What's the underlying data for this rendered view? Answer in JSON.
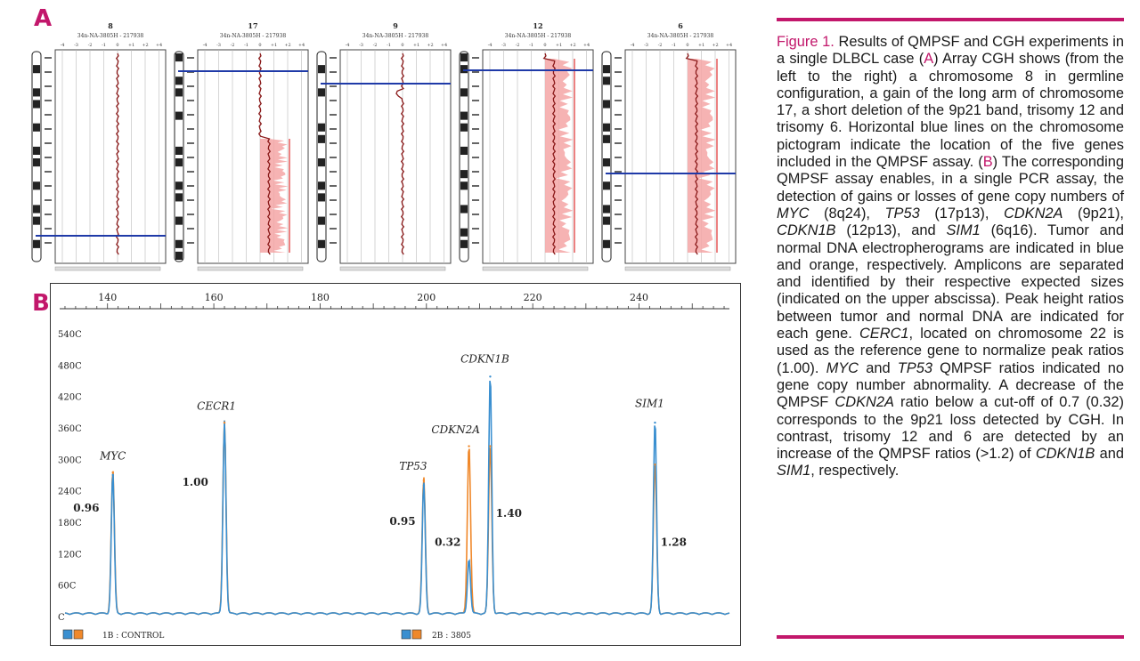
{
  "panel_a": {
    "label": "A",
    "plots": [
      {
        "chrom": "8",
        "sample": "34n-NA-3805H - 217938"
      },
      {
        "chrom": "17",
        "sample": "34n-NA-3805H - 217938"
      },
      {
        "chrom": "9",
        "sample": "34n-NA-3805H - 217938"
      },
      {
        "chrom": "12",
        "sample": "34n-NA-3805H - 217938"
      },
      {
        "chrom": "6",
        "sample": "34n-NA-3805H - 217938"
      }
    ],
    "axis_ticks": [
      "-4",
      "-3",
      "-2",
      "-1",
      "0",
      "+1",
      "+2",
      "+4"
    ]
  },
  "chart_data": {
    "type": "line",
    "title": "",
    "label": "B",
    "xlabel": "",
    "ylabel": "",
    "x_ticks": [
      "140",
      "160",
      "180",
      "200",
      "220",
      "240"
    ],
    "xlim": [
      131,
      257
    ],
    "y_ticks": [
      "540C",
      "480C",
      "420C",
      "360C",
      "300C",
      "240C",
      "180C",
      "120C",
      "60C",
      "C"
    ],
    "ylim": [
      0,
      5400
    ],
    "series": [
      {
        "name": "Tumor DNA",
        "color": "#3a8fd0",
        "peaks": [
          {
            "gene": "MYC",
            "x": 141,
            "height": 2700
          },
          {
            "gene": "CECR1",
            "x": 162,
            "height": 3700
          },
          {
            "gene": "TP53",
            "x": 199.5,
            "height": 2500
          },
          {
            "gene": "CDKN2A",
            "x": 208,
            "height": 1050
          },
          {
            "gene": "CDKN1B",
            "x": 212,
            "height": 4580
          },
          {
            "gene": "SIM1",
            "x": 243,
            "height": 3700
          }
        ]
      },
      {
        "name": "Normal DNA",
        "color": "#f0882a",
        "peaks": [
          {
            "gene": "MYC",
            "x": 141,
            "height": 2750
          },
          {
            "gene": "CECR1",
            "x": 162,
            "height": 3700
          },
          {
            "gene": "TP53",
            "x": 199.5,
            "height": 2600
          },
          {
            "gene": "CDKN2A",
            "x": 208,
            "height": 3250
          },
          {
            "gene": "CDKN1B",
            "x": 212,
            "height": 3250
          },
          {
            "gene": "SIM1",
            "x": 243,
            "height": 2900
          }
        ]
      }
    ],
    "gene_labels": [
      "MYC",
      "CECR1",
      "TP53",
      "CDKN2A",
      "CDKN1B",
      "SIM1"
    ],
    "ratios": [
      {
        "gene": "MYC",
        "value": "0.96"
      },
      {
        "gene": "CECR1",
        "value": "1.00"
      },
      {
        "gene": "TP53",
        "value": "0.95"
      },
      {
        "gene": "CDKN2A",
        "value": "0.32"
      },
      {
        "gene": "CDKN1B",
        "value": "1.40"
      },
      {
        "gene": "SIM1",
        "value": "1.28"
      }
    ],
    "footer_left": "1B : CONTROL",
    "footer_right": "2B : 3805"
  },
  "colors": {
    "accent": "#c2176b",
    "tumor": "#3a8fd0",
    "normal": "#f0882a",
    "cgh_line": "#8b1a1a",
    "cgh_gain": "#f4a6a6",
    "gene_marker": "#1f3aa8"
  },
  "caption": {
    "fig": "Figure 1.",
    "t1": " Results of QMPSF and CGH experiments in a single DLBCL case (",
    "a": "A",
    "t2": ") Array CGH shows (from the left to the right) a chromosome 8 in germline configuration, a gain of the long arm of chromosome 17, a short deletion of the 9p21 band, trisomy 12 and trisomy 6. Horizontal blue lines on the chromosome pictogram indicate the location of the five genes included in the QMPSF assay. (",
    "b": "B",
    "t3": ") The corresponding QMPSF assay enables, in a single PCR assay, the detection of gains or losses of gene copy numbers of ",
    "g1": "MYC",
    "t4": " (8q24), ",
    "g2": "TP53",
    "t5": " (17p13), ",
    "g3": "CDKN2A",
    "t6": " (9p21), ",
    "g4": "CDKN1B",
    "t7": " (12p13), and ",
    "g5": "SIM1",
    "t8": " (6q16). Tumor and normal DNA electropherograms are indicated in blue and orange, respectively. Amplicons are separated and identified by their respective expected sizes (indicated on the upper abscissa). Peak height ratios between tumor and normal DNA are indicated for each gene. ",
    "g6": "CERC1",
    "t9": ", located on chromosome 22 is used as the reference gene to normalize peak ratios (1.00). ",
    "g7": "MYC",
    "t10": " and ",
    "g8": "TP53",
    "t11": " QMPSF ratios indicated no gene copy number abnormality. A decrease of the QMPSF ",
    "g9": "CDKN2A",
    "t12": " ratio below a cut-off of 0.7 (0.32) corresponds to the 9p21 loss detected by CGH. In contrast, trisomy 12 and 6 are detected by an increase of the QMPSF ratios (>1.2) of ",
    "g10": "CDKN1B",
    "t13": " and ",
    "g11": "SIM1",
    "t14": ", respectively."
  }
}
